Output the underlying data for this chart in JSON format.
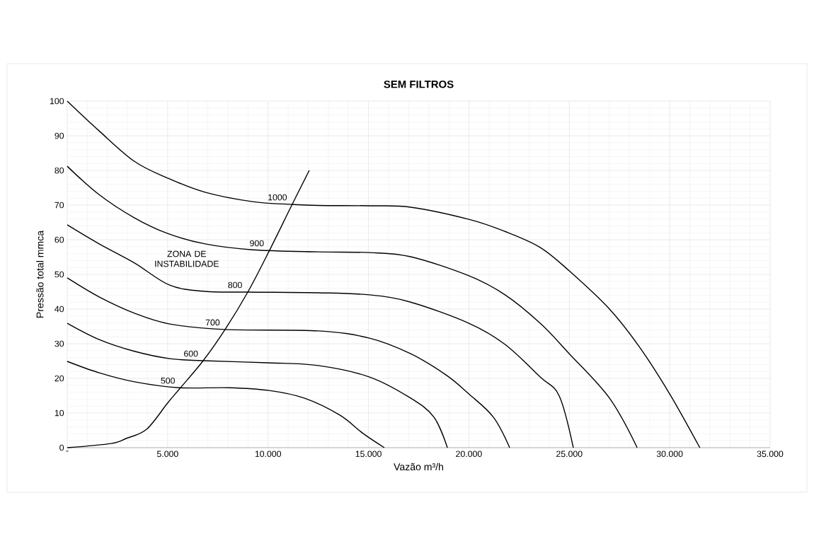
{
  "chart_data": {
    "type": "line",
    "title": "SEM FILTROS",
    "xlabel": "Vazão m³/h",
    "ylabel": "Pressão total mmca",
    "xlim": [
      0,
      35000
    ],
    "ylim": [
      0,
      100
    ],
    "xticks": [
      {
        "value": 0,
        "label": "-"
      },
      {
        "value": 5000,
        "label": "5.000"
      },
      {
        "value": 10000,
        "label": "10.000"
      },
      {
        "value": 15000,
        "label": "15.000"
      },
      {
        "value": 20000,
        "label": "20.000"
      },
      {
        "value": 25000,
        "label": "25.000"
      },
      {
        "value": 30000,
        "label": "30.000"
      },
      {
        "value": 35000,
        "label": "35.000"
      }
    ],
    "yticks": [
      0,
      10,
      20,
      30,
      40,
      50,
      60,
      70,
      80,
      90,
      100
    ],
    "grid": true,
    "marker": "none",
    "line_style": "solid",
    "series": [
      {
        "name": "1000",
        "color": "#000000",
        "x": [
          0,
          1590,
          3350,
          5000,
          6870,
          9230,
          11200,
          12500,
          15050,
          17100,
          20000,
          21800,
          23550,
          25000,
          27000,
          28500,
          30000,
          31500
        ],
        "values": [
          100,
          91.4,
          82.6,
          77.8,
          73.7,
          71,
          70.2,
          69.9,
          69.8,
          69.4,
          65.9,
          62.4,
          57.8,
          51,
          40,
          29,
          15.5,
          0
        ]
      },
      {
        "name": "900",
        "color": "#000000",
        "x": [
          0,
          1590,
          3350,
          5000,
          6870,
          9230,
          12500,
          15050,
          17100,
          20000,
          21800,
          23550,
          25000,
          27000,
          28380
        ],
        "values": [
          81.2,
          73,
          66.3,
          61.8,
          58.8,
          57.1,
          56.5,
          56.3,
          55.1,
          49.6,
          44.1,
          35.9,
          27.1,
          14.3,
          0
        ]
      },
      {
        "name": "800",
        "color": "#000000",
        "x": [
          0,
          1590,
          3350,
          5100,
          6870,
          9000,
          12500,
          15050,
          17100,
          20000,
          21800,
          23550,
          24500,
          25200
        ],
        "values": [
          64.3,
          58.8,
          53.3,
          46.9,
          45.1,
          44.9,
          44.7,
          44.1,
          42,
          35.9,
          29.8,
          20.4,
          14.9,
          0
        ]
      },
      {
        "name": "700",
        "color": "#000000",
        "x": [
          0,
          1590,
          3350,
          5100,
          7830,
          12500,
          15050,
          17100,
          18860,
          20000,
          21220,
          22030
        ],
        "values": [
          49,
          43.5,
          38.8,
          35.7,
          34.1,
          33.7,
          31.6,
          27.1,
          21,
          15.5,
          8.8,
          0
        ]
      },
      {
        "name": "600",
        "color": "#000000",
        "x": [
          0,
          1590,
          3350,
          5100,
          6770,
          10000,
          12500,
          15050,
          17100,
          18260,
          18930
        ],
        "values": [
          35.9,
          31.2,
          27.8,
          25.7,
          25.1,
          24.5,
          23.7,
          20.4,
          14.3,
          8.8,
          0
        ]
      },
      {
        "name": "500",
        "color": "#000000",
        "x": [
          0,
          1590,
          3350,
          5570,
          8040,
          10050,
          11800,
          13570,
          14730,
          15790
        ],
        "values": [
          24.9,
          21.6,
          19,
          17.3,
          17.3,
          16.5,
          14.3,
          9.4,
          4.1,
          0
        ]
      },
      {
        "color": "#000000",
        "x": [
          0,
          2190,
          2950,
          3950,
          5000,
          5640,
          6770,
          7860,
          8990,
          10050,
          11200,
          12050
        ],
        "values": [
          0,
          1.2,
          2.7,
          5.3,
          12.9,
          17.3,
          25.1,
          34.1,
          44.9,
          56.7,
          70.2,
          80
        ]
      }
    ],
    "annotations": [
      "ZONA DE INSTABILIDADE"
    ]
  }
}
